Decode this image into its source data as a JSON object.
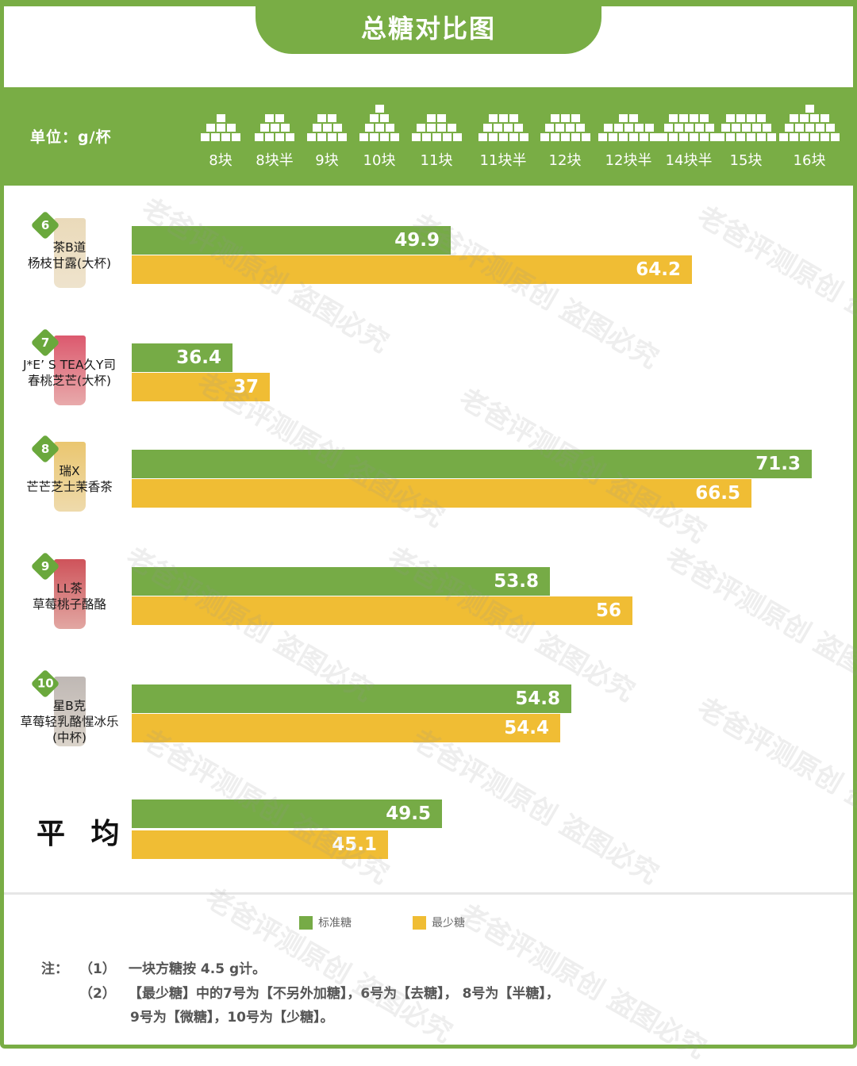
{
  "title": "总糖对比图",
  "unit_label": "单位：g/杯",
  "sugar_scale": [
    {
      "label": "8块",
      "cubes": 8
    },
    {
      "label": "8块半",
      "cubes": 8.5
    },
    {
      "label": "9块",
      "cubes": 9
    },
    {
      "label": "10块",
      "cubes": 10
    },
    {
      "label": "11块",
      "cubes": 11
    },
    {
      "label": "11块半",
      "cubes": 11.5
    },
    {
      "label": "12块",
      "cubes": 12
    },
    {
      "label": "12块半",
      "cubes": 12.5
    },
    {
      "label": "14块半",
      "cubes": 14.5
    },
    {
      "label": "15块",
      "cubes": 15
    },
    {
      "label": "16块",
      "cubes": 16
    }
  ],
  "products": [
    {
      "no": "6",
      "brand": "茶B道",
      "name": "杨枝甘露(大杯)",
      "standard": "49.9",
      "least": "64.2"
    },
    {
      "no": "7",
      "brand": "J*E’ S TEA久Y司",
      "name": "春桃芝芒(大杯)",
      "standard": "36.4",
      "least": "37"
    },
    {
      "no": "8",
      "brand": "瑞X",
      "name": "芒芒芝士茉香茶",
      "standard": "71.3",
      "least": "66.5"
    },
    {
      "no": "9",
      "brand": "LL茶",
      "name": "草莓桃子酪酪",
      "standard": "53.8",
      "least": "56"
    },
    {
      "no": "10",
      "brand": "星B克",
      "name": "草莓轻乳酪惺冰乐",
      "size": "(中杯)",
      "standard": "54.8",
      "least": "54.4"
    }
  ],
  "average": {
    "label": "平 均",
    "standard": "49.5",
    "least": "45.1"
  },
  "legend": [
    {
      "label": "标准糖",
      "color": "#76ab46"
    },
    {
      "label": "最少糖",
      "color": "#f0bd34"
    }
  ],
  "notes": {
    "prefix": "注：",
    "n1_idx": "（1）",
    "n1": "一块方糖按 4.5 g计。",
    "n2_idx": "（2）",
    "n2_line1": "【最少糖】中的7号为【不另外加糖】，6号为【去糖】， 8号为【半糖】，",
    "n2_line2": "9号为【微糖】，10号为【少糖】。"
  },
  "watermark": "老爸评测原创 盗图必究",
  "colors": {
    "green": "#76ab46",
    "yellow": "#f0bd34",
    "frame": "#79ad45"
  },
  "chart_data": {
    "type": "bar",
    "orientation": "horizontal",
    "title": "总糖对比图",
    "unit": "g/杯",
    "categories": [
      "茶B道 杨枝甘露(大杯)",
      "J*E’ S TEA久Y司 春桃芝芒(大杯)",
      "瑞X 芒芒芝士茉香茶",
      "LL茶 草莓桃子酪酪",
      "星B克 草莓轻乳酪惺冰乐(中杯)",
      "平均"
    ],
    "series": [
      {
        "name": "标准糖",
        "color": "#76ab46",
        "values": [
          49.9,
          36.4,
          71.3,
          53.8,
          54.8,
          49.5
        ]
      },
      {
        "name": "最少糖",
        "color": "#f0bd34",
        "values": [
          64.2,
          37,
          66.5,
          56,
          54.4,
          45.1
        ]
      }
    ],
    "legend_position": "bottom",
    "grid": false,
    "annotations": [
      "单位：g/杯",
      "一块方糖按 4.5 g计"
    ]
  }
}
